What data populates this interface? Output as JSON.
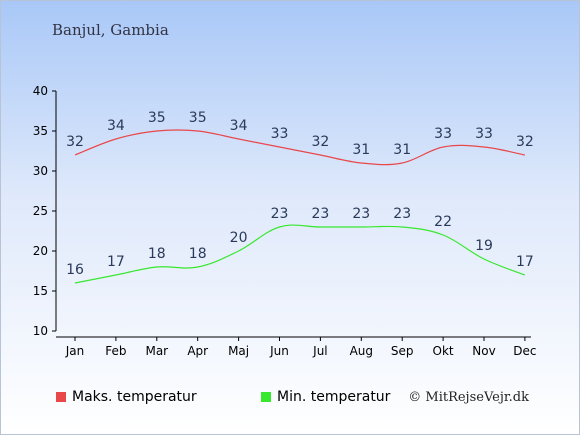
{
  "location": "Banjul, Gambia",
  "legend": {
    "max_label": "Maks. temperatur",
    "min_label": "Min. temperatur"
  },
  "credit": "© MitRejseVejr.dk",
  "colors": {
    "max": "#e8484a",
    "min": "#37e82d"
  },
  "chart_data": {
    "type": "line",
    "categories": [
      "Jan",
      "Feb",
      "Mar",
      "Apr",
      "Maj",
      "Jun",
      "Jul",
      "Aug",
      "Sep",
      "Okt",
      "Nov",
      "Dec"
    ],
    "series": [
      {
        "name": "Maks. temperatur",
        "values": [
          32,
          34,
          35,
          35,
          34,
          33,
          32,
          31,
          31,
          33,
          33,
          32
        ]
      },
      {
        "name": "Min. temperatur",
        "values": [
          16,
          17,
          18,
          18,
          20,
          23,
          23,
          23,
          23,
          22,
          19,
          17
        ]
      }
    ],
    "ylim": [
      10,
      40
    ],
    "yticks": [
      10,
      15,
      20,
      25,
      30,
      35,
      40
    ],
    "grid": false,
    "legend_position": "bottom-left"
  }
}
